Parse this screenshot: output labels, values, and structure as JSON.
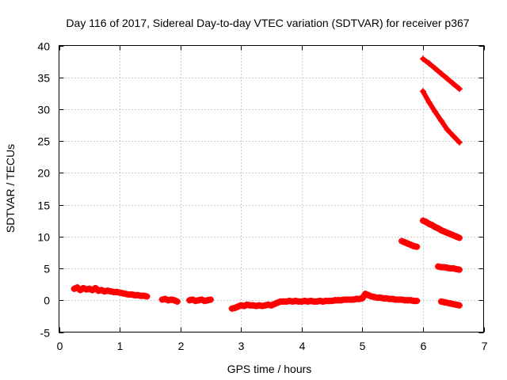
{
  "chart_data": {
    "type": "scatter",
    "title": "Day 116 of 2017, Sidereal Day-to-day VTEC variation (SDTVAR) for receiver p367",
    "xlabel": "GPS time / hours",
    "ylabel": "SDTVAR / TECUs",
    "xlim": [
      0,
      7
    ],
    "ylim": [
      -5,
      40
    ],
    "xticks": [
      0,
      1,
      2,
      3,
      4,
      5,
      6,
      7
    ],
    "yticks": [
      -5,
      0,
      5,
      10,
      15,
      20,
      25,
      30,
      35,
      40
    ],
    "grid": true,
    "marker": "+",
    "color": "#ff0000",
    "series": [
      {
        "points": [
          [
            0.25,
            1.8
          ],
          [
            0.3,
            2.0
          ],
          [
            0.35,
            1.6
          ],
          [
            0.4,
            1.9
          ],
          [
            0.45,
            1.7
          ],
          [
            0.5,
            1.8
          ],
          [
            0.55,
            1.6
          ],
          [
            0.6,
            1.9
          ],
          [
            0.65,
            1.5
          ],
          [
            0.7,
            1.6
          ],
          [
            0.75,
            1.4
          ],
          [
            0.8,
            1.5
          ],
          [
            0.85,
            1.4
          ],
          [
            0.9,
            1.3
          ],
          [
            0.95,
            1.3
          ],
          [
            1.0,
            1.2
          ],
          [
            1.05,
            1.1
          ],
          [
            1.1,
            1.0
          ],
          [
            1.15,
            0.9
          ],
          [
            1.2,
            0.9
          ],
          [
            1.25,
            0.8
          ],
          [
            1.3,
            0.8
          ],
          [
            1.35,
            0.7
          ],
          [
            1.4,
            0.7
          ],
          [
            1.45,
            0.6
          ],
          [
            1.7,
            0.1
          ],
          [
            1.75,
            0.2
          ],
          [
            1.8,
            0.0
          ],
          [
            1.85,
            0.1
          ],
          [
            1.9,
            0.0
          ],
          [
            1.95,
            -0.2
          ],
          [
            2.15,
            0.0
          ],
          [
            2.2,
            0.1
          ],
          [
            2.25,
            -0.1
          ],
          [
            2.3,
            0.0
          ],
          [
            2.35,
            0.1
          ],
          [
            2.4,
            -0.1
          ],
          [
            2.45,
            0.0
          ],
          [
            2.5,
            0.1
          ],
          [
            2.85,
            -1.3
          ],
          [
            2.9,
            -1.2
          ],
          [
            2.95,
            -1.0
          ],
          [
            3.0,
            -0.8
          ],
          [
            3.05,
            -0.9
          ],
          [
            3.1,
            -0.7
          ],
          [
            3.15,
            -0.8
          ],
          [
            3.2,
            -0.8
          ],
          [
            3.25,
            -0.9
          ],
          [
            3.3,
            -0.8
          ],
          [
            3.35,
            -0.9
          ],
          [
            3.4,
            -0.8
          ],
          [
            3.45,
            -0.7
          ],
          [
            3.5,
            -0.8
          ],
          [
            3.55,
            -0.6
          ],
          [
            3.6,
            -0.4
          ],
          [
            3.65,
            -0.2
          ],
          [
            3.7,
            -0.2
          ],
          [
            3.75,
            -0.2
          ],
          [
            3.8,
            -0.1
          ],
          [
            3.85,
            -0.2
          ],
          [
            3.9,
            -0.1
          ],
          [
            3.95,
            -0.2
          ],
          [
            4.0,
            -0.2
          ],
          [
            4.05,
            -0.1
          ],
          [
            4.1,
            -0.2
          ],
          [
            4.15,
            -0.1
          ],
          [
            4.2,
            -0.2
          ],
          [
            4.25,
            -0.2
          ],
          [
            4.3,
            -0.1
          ],
          [
            4.35,
            -0.2
          ],
          [
            4.4,
            -0.1
          ],
          [
            4.45,
            -0.1
          ],
          [
            4.5,
            -0.1
          ],
          [
            4.55,
            0.0
          ],
          [
            4.6,
            0.0
          ],
          [
            4.65,
            0.0
          ],
          [
            4.7,
            0.1
          ],
          [
            4.75,
            0.1
          ],
          [
            4.8,
            0.1
          ],
          [
            4.85,
            0.1
          ],
          [
            4.9,
            0.2
          ],
          [
            4.95,
            0.2
          ],
          [
            5.0,
            0.3
          ],
          [
            5.05,
            1.0
          ],
          [
            5.1,
            0.8
          ],
          [
            5.15,
            0.6
          ],
          [
            5.2,
            0.5
          ],
          [
            5.25,
            0.4
          ],
          [
            5.3,
            0.4
          ],
          [
            5.35,
            0.3
          ],
          [
            5.4,
            0.3
          ],
          [
            5.45,
            0.2
          ],
          [
            5.5,
            0.2
          ],
          [
            5.55,
            0.1
          ],
          [
            5.6,
            0.1
          ],
          [
            5.65,
            0.1
          ],
          [
            5.7,
            0.0
          ],
          [
            5.75,
            0.0
          ],
          [
            5.8,
            0.0
          ],
          [
            5.85,
            -0.1
          ],
          [
            5.9,
            -0.1
          ],
          [
            5.65,
            9.3
          ],
          [
            5.7,
            9.1
          ],
          [
            5.75,
            8.9
          ],
          [
            5.8,
            8.7
          ],
          [
            5.85,
            8.5
          ],
          [
            5.9,
            8.4
          ],
          [
            6.0,
            37.9
          ],
          [
            6.1,
            37.2
          ],
          [
            6.2,
            36.4
          ],
          [
            6.3,
            35.6
          ],
          [
            6.4,
            34.8
          ],
          [
            6.5,
            34.0
          ],
          [
            6.6,
            33.2
          ],
          [
            6.0,
            32.8
          ],
          [
            6.1,
            31.1
          ],
          [
            6.2,
            29.6
          ],
          [
            6.3,
            28.2
          ],
          [
            6.4,
            26.8
          ],
          [
            6.5,
            25.8
          ],
          [
            6.6,
            24.8
          ],
          [
            6.0,
            12.5
          ],
          [
            6.05,
            12.3
          ],
          [
            6.1,
            12.0
          ],
          [
            6.15,
            11.8
          ],
          [
            6.2,
            11.5
          ],
          [
            6.25,
            11.3
          ],
          [
            6.3,
            11.0
          ],
          [
            6.35,
            10.8
          ],
          [
            6.4,
            10.6
          ],
          [
            6.45,
            10.4
          ],
          [
            6.5,
            10.2
          ],
          [
            6.55,
            10.0
          ],
          [
            6.6,
            9.8
          ],
          [
            6.25,
            5.3
          ],
          [
            6.3,
            5.2
          ],
          [
            6.35,
            5.2
          ],
          [
            6.4,
            5.1
          ],
          [
            6.45,
            5.0
          ],
          [
            6.5,
            5.0
          ],
          [
            6.55,
            4.9
          ],
          [
            6.6,
            4.8
          ],
          [
            6.3,
            -0.2
          ],
          [
            6.35,
            -0.3
          ],
          [
            6.4,
            -0.4
          ],
          [
            6.45,
            -0.5
          ],
          [
            6.5,
            -0.6
          ],
          [
            6.55,
            -0.7
          ],
          [
            6.6,
            -0.8
          ]
        ]
      }
    ]
  }
}
